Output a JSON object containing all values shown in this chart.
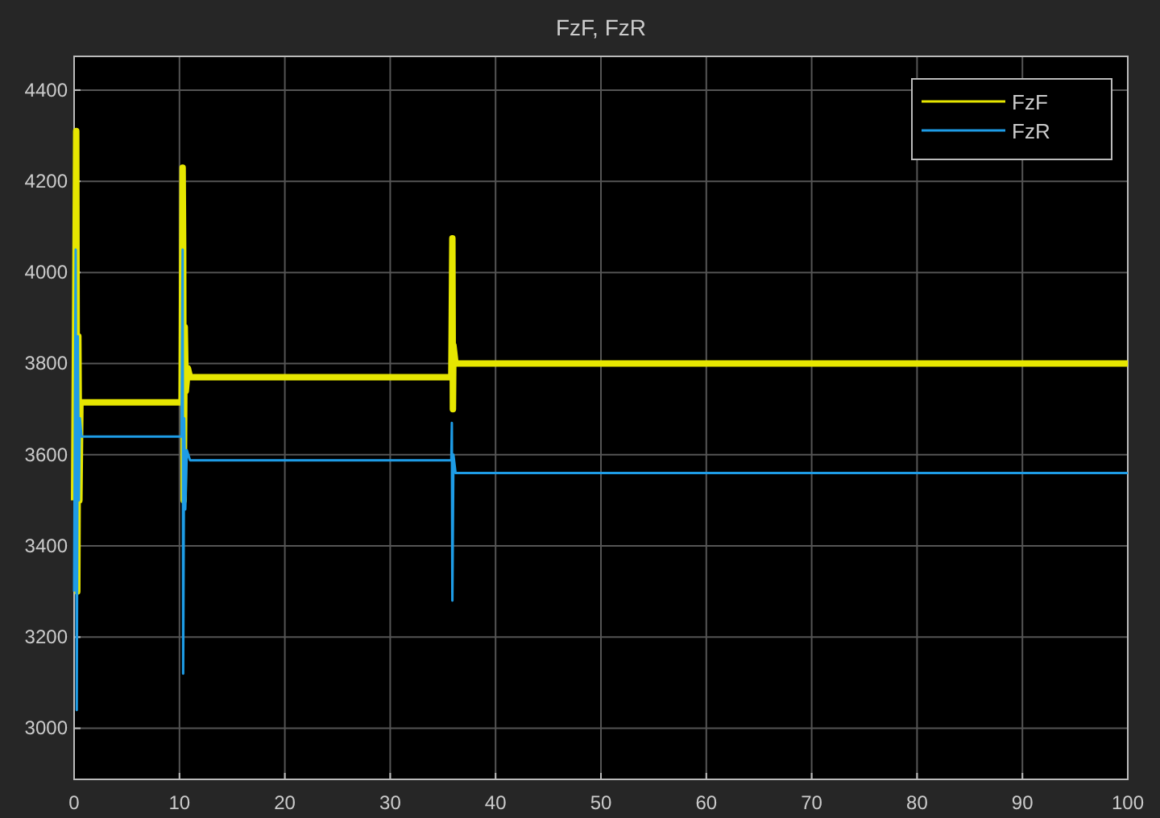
{
  "chart_data": {
    "type": "line",
    "title": "FzF, FzR",
    "xlim": [
      0,
      100
    ],
    "xticks": [
      0,
      10,
      20,
      30,
      40,
      50,
      60,
      70,
      80,
      90,
      100
    ],
    "ylim": [
      2888,
      4474
    ],
    "yticks": [
      3000,
      3200,
      3400,
      3600,
      3800,
      4000,
      4200,
      4400
    ],
    "grid": true,
    "legend": "top right",
    "line_style": "solid",
    "marker": "none",
    "series": [
      {
        "name": "FzF",
        "color": "#e6e600",
        "x": [
          0,
          0.2,
          0.3,
          0.4,
          0.5,
          0.6,
          10.2,
          10.3,
          10.35,
          10.4,
          10.5,
          10.6,
          10.8,
          11,
          35.8,
          35.9,
          35.95,
          36,
          36.2,
          100
        ],
        "values": [
          3500,
          4310,
          3300,
          3860,
          3500,
          3715,
          3715,
          4230,
          4050,
          3500,
          3880,
          3740,
          3790,
          3770,
          3770,
          4075,
          3700,
          3840,
          3800,
          3800
        ]
      },
      {
        "name": "FzR",
        "color": "#1e9ce6",
        "x": [
          0,
          0.15,
          0.25,
          0.35,
          0.45,
          0.55,
          0.7,
          10.2,
          10.3,
          10.35,
          10.45,
          10.55,
          10.7,
          11,
          35.8,
          35.85,
          35.9,
          36,
          36.2,
          100
        ],
        "values": [
          3300,
          4050,
          3040,
          3860,
          3500,
          3680,
          3640,
          3640,
          4050,
          3120,
          3680,
          3480,
          3610,
          3588,
          3588,
          3670,
          3280,
          3600,
          3560,
          3560
        ]
      }
    ]
  }
}
